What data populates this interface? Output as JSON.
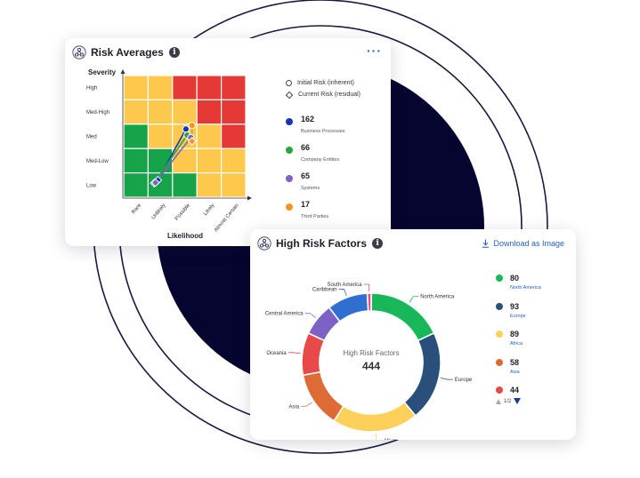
{
  "risk_card": {
    "title": "Risk Averages",
    "menu_label": "···",
    "y_axis_title": "Severity",
    "x_axis_title": "Likelihood",
    "severity_levels": [
      "High",
      "Med-High",
      "Med",
      "Med-Low",
      "Low"
    ],
    "likelihood_levels": [
      "Rare",
      "Unlikely",
      "Possible",
      "Likely",
      "Almost Certain"
    ],
    "legend": {
      "initial_label": "Initial Risk (inherent)",
      "current_label": "Current Risk (residual)"
    },
    "stats": [
      {
        "value": "162",
        "label": "Business Processes",
        "color": "#1434b8"
      },
      {
        "value": "66",
        "label": "Company Entities",
        "color": "#2aa53a"
      },
      {
        "value": "65",
        "label": "Systems",
        "color": "#7b62c4"
      },
      {
        "value": "17",
        "label": "Third Parties",
        "color": "#f7941d"
      }
    ],
    "colors": {
      "green": "#16a34a",
      "yellow": "#fdc84c",
      "red": "#e53935"
    }
  },
  "factors_card": {
    "title": "High Risk Factors",
    "download_label": "Download as Image",
    "center_title": "High Risk Factors",
    "center_value": "444",
    "stats": [
      {
        "value": "80",
        "label": "North America",
        "color": "#18b85a"
      },
      {
        "value": "93",
        "label": "Europe",
        "color": "#28507a"
      },
      {
        "value": "89",
        "label": "Africa",
        "color": "#fdd05a"
      },
      {
        "value": "58",
        "label": "Asia",
        "color": "#de6a35"
      },
      {
        "value": "44",
        "label": "",
        "color": "#e84a4a"
      }
    ],
    "pager_label": "1/2"
  },
  "chart_data": [
    {
      "type": "heatmap",
      "title": "Risk Averages",
      "xlabel": "Likelihood",
      "ylabel": "Severity",
      "x_categories": [
        "Rare",
        "Unlikely",
        "Possible",
        "Likely",
        "Almost Certain"
      ],
      "y_categories": [
        "High",
        "Med-High",
        "Med",
        "Med-Low",
        "Low"
      ],
      "cells": [
        [
          "yellow",
          "yellow",
          "red",
          "red",
          "red"
        ],
        [
          "yellow",
          "yellow",
          "yellow",
          "red",
          "red"
        ],
        [
          "green",
          "yellow",
          "yellow",
          "yellow",
          "red"
        ],
        [
          "green",
          "green",
          "yellow",
          "yellow",
          "yellow"
        ],
        [
          "green",
          "green",
          "green",
          "yellow",
          "yellow"
        ]
      ],
      "points": [
        {
          "series": "Business Processes",
          "initial": [
            2.55,
            2.8
          ],
          "current": [
            1.4,
            0.7
          ]
        },
        {
          "series": "Company Entities",
          "initial": [
            2.6,
            2.55
          ],
          "current": [
            1.25,
            0.58
          ]
        },
        {
          "series": "Systems",
          "initial": [
            2.75,
            2.45
          ],
          "current": [
            1.3,
            0.6
          ]
        },
        {
          "series": "Third Parties",
          "initial": [
            2.8,
            2.95
          ],
          "current": [
            2.8,
            2.3
          ]
        }
      ]
    },
    {
      "type": "pie",
      "title": "High Risk Factors",
      "categories": [
        "North America",
        "Europe",
        "Africa",
        "Asia",
        "Oceania",
        "Central America",
        "Caribbean",
        "South America"
      ],
      "values": [
        80,
        93,
        89,
        58,
        44,
        34,
        42,
        4
      ],
      "colors": [
        "#18b85a",
        "#28507a",
        "#fdd05a",
        "#de6a35",
        "#e84a4a",
        "#7b62c4",
        "#2f6fd0",
        "#e84a8c"
      ],
      "total": 444
    }
  ]
}
